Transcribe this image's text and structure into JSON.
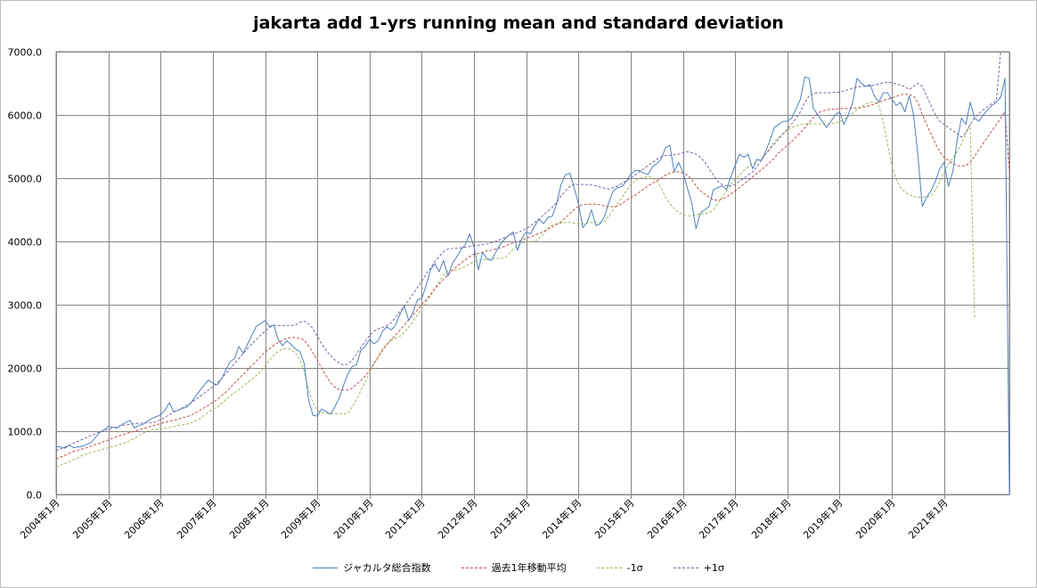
{
  "chart_data": {
    "type": "line",
    "title": "jakarta add 1-yrs running mean and standard deviation",
    "xlabel": "",
    "ylabel": "",
    "ylim": [
      0,
      7000
    ],
    "yticks": [
      "7000.0",
      "6000.0",
      "5000.0",
      "4000.0",
      "3000.0",
      "2000.0",
      "1000.0",
      "0.0"
    ],
    "xticks": [
      "2004年1月",
      "2005年1月",
      "2006年1月",
      "2007年1月",
      "2008年1月",
      "2009年1月",
      "2010年1月",
      "2011年1月",
      "2012年1月",
      "2013年1月",
      "2014年1月",
      "2015年1月",
      "2016年1月",
      "2017年1月",
      "2018年1月",
      "2019年1月",
      "2020年1月",
      "2021年1月"
    ],
    "x_start": "2004-01",
    "grid": true,
    "legend_position": "bottom",
    "series": [
      {
        "name": "ジャカルタ総合指数",
        "color": "#4f81bd",
        "dash": "solid",
        "values": [
          760,
          750,
          730,
          780,
          740,
          750,
          760,
          790,
          820,
          900,
          980,
          1020,
          1080,
          1060,
          1050,
          1100,
          1140,
          1170,
          1050,
          1090,
          1110,
          1160,
          1200,
          1230,
          1260,
          1330,
          1450,
          1310,
          1330,
          1360,
          1380,
          1450,
          1550,
          1640,
          1730,
          1810,
          1760,
          1730,
          1830,
          1970,
          2100,
          2150,
          2340,
          2230,
          2380,
          2520,
          2660,
          2700,
          2750,
          2650,
          2680,
          2450,
          2350,
          2430,
          2370,
          2300,
          2260,
          2070,
          1500,
          1250,
          1240,
          1350,
          1310,
          1270,
          1380,
          1520,
          1720,
          1900,
          2020,
          2050,
          2280,
          2340,
          2450,
          2380,
          2430,
          2580,
          2650,
          2600,
          2680,
          2850,
          2980,
          2750,
          2880,
          3080,
          3100,
          3300,
          3550,
          3650,
          3520,
          3700,
          3450,
          3650,
          3750,
          3870,
          3950,
          4120,
          3920,
          3550,
          3830,
          3720,
          3700,
          3830,
          3950,
          4030,
          4100,
          4150,
          3860,
          4050,
          4150,
          4120,
          4250,
          4350,
          4280,
          4380,
          4400,
          4600,
          4900,
          5050,
          5080,
          4850,
          4600,
          4220,
          4300,
          4500,
          4250,
          4280,
          4400,
          4620,
          4800,
          4850,
          4870,
          4950,
          5060,
          5120,
          5120,
          5080,
          5060,
          5180,
          5230,
          5300,
          5480,
          5520,
          5100,
          5250,
          5100,
          4850,
          4620,
          4200,
          4450,
          4500,
          4550,
          4820,
          4850,
          4880,
          4820,
          5020,
          5200,
          5380,
          5330,
          5380,
          5150,
          5300,
          5280,
          5420,
          5600,
          5800,
          5850,
          5900,
          5900,
          5950,
          6100,
          6250,
          6600,
          6580,
          6100,
          6000,
          5900,
          5800,
          5900,
          6000,
          6050,
          5850,
          6000,
          6200,
          6580,
          6500,
          6450,
          6480,
          6300,
          6200,
          6350,
          6350,
          6250,
          6150,
          6200,
          6050,
          6300,
          6000,
          5350,
          4550,
          4700,
          4800,
          4950,
          5150,
          5250,
          4870,
          5100,
          5600,
          5950,
          5850,
          6200,
          5950,
          5900,
          6000,
          6080,
          6150,
          6200,
          6280,
          6580,
          0
        ]
      },
      {
        "name": "過去1年移動平均",
        "color": "#c0504d",
        "dash": "dashed",
        "values": [
          560,
          590,
          620,
          650,
          680,
          700,
          720,
          740,
          760,
          790,
          810,
          840,
          860,
          890,
          910,
          940,
          960,
          980,
          1000,
          1020,
          1040,
          1060,
          1080,
          1100,
          1120,
          1140,
          1160,
          1170,
          1190,
          1210,
          1230,
          1250,
          1290,
          1330,
          1370,
          1410,
          1460,
          1500,
          1560,
          1620,
          1690,
          1760,
          1830,
          1900,
          1970,
          2040,
          2110,
          2180,
          2250,
          2300,
          2360,
          2400,
          2440,
          2470,
          2480,
          2480,
          2470,
          2440,
          2350,
          2240,
          2120,
          2000,
          1880,
          1770,
          1700,
          1660,
          1650,
          1650,
          1680,
          1740,
          1800,
          1870,
          1960,
          2070,
          2170,
          2280,
          2370,
          2450,
          2520,
          2600,
          2680,
          2760,
          2840,
          2920,
          3000,
          3080,
          3160,
          3250,
          3330,
          3400,
          3470,
          3540,
          3600,
          3660,
          3710,
          3760,
          3800,
          3810,
          3830,
          3850,
          3860,
          3880,
          3900,
          3920,
          3950,
          3980,
          4000,
          4020,
          4050,
          4070,
          4100,
          4130,
          4160,
          4190,
          4230,
          4270,
          4310,
          4370,
          4440,
          4500,
          4560,
          4580,
          4590,
          4590,
          4590,
          4580,
          4560,
          4550,
          4550,
          4560,
          4600,
          4650,
          4690,
          4730,
          4780,
          4830,
          4880,
          4920,
          4960,
          5000,
          5050,
          5080,
          5100,
          5100,
          5080,
          5050,
          4980,
          4880,
          4800,
          4750,
          4700,
          4660,
          4650,
          4670,
          4700,
          4750,
          4800,
          4850,
          4910,
          4960,
          5020,
          5080,
          5130,
          5190,
          5250,
          5320,
          5400,
          5460,
          5520,
          5580,
          5650,
          5720,
          5800,
          5880,
          5960,
          6030,
          6060,
          6080,
          6090,
          6090,
          6100,
          6100,
          6100,
          6110,
          6110,
          6120,
          6130,
          6150,
          6170,
          6200,
          6230,
          6250,
          6270,
          6290,
          6320,
          6330,
          6320,
          6300,
          6200,
          6000,
          5850,
          5700,
          5550,
          5420,
          5330,
          5280,
          5230,
          5200,
          5190,
          5200,
          5250,
          5350,
          5450,
          5550,
          5650,
          5750,
          5850,
          5950,
          6050,
          5100
        ]
      },
      {
        "name": "-1σ",
        "color": "#9bbb59",
        "dash": "dashed",
        "values": [
          430,
          460,
          490,
          520,
          550,
          580,
          620,
          640,
          660,
          680,
          700,
          720,
          740,
          760,
          780,
          800,
          820,
          850,
          890,
          930,
          970,
          1000,
          1020,
          1030,
          1040,
          1050,
          1060,
          1070,
          1090,
          1100,
          1110,
          1130,
          1160,
          1200,
          1250,
          1300,
          1350,
          1380,
          1440,
          1500,
          1560,
          1610,
          1660,
          1710,
          1770,
          1820,
          1880,
          1950,
          2030,
          2120,
          2200,
          2260,
          2300,
          2310,
          2290,
          2230,
          2130,
          1950,
          1650,
          1450,
          1330,
          1290,
          1280,
          1280,
          1270,
          1280,
          1270,
          1280,
          1380,
          1500,
          1640,
          1780,
          1920,
          2060,
          2180,
          2300,
          2380,
          2440,
          2470,
          2500,
          2560,
          2640,
          2740,
          2840,
          2940,
          3040,
          3140,
          3260,
          3370,
          3470,
          3530,
          3550,
          3550,
          3570,
          3600,
          3650,
          3680,
          3700,
          3710,
          3720,
          3720,
          3730,
          3730,
          3740,
          3800,
          3880,
          3930,
          3970,
          4000,
          4000,
          4000,
          4050,
          4120,
          4220,
          4260,
          4280,
          4290,
          4300,
          4300,
          4290,
          4280,
          4280,
          4290,
          4300,
          4300,
          4300,
          4320,
          4400,
          4500,
          4600,
          4700,
          4800,
          4900,
          4960,
          5000,
          5020,
          5030,
          5010,
          4950,
          4850,
          4700,
          4600,
          4520,
          4460,
          4420,
          4400,
          4410,
          4420,
          4430,
          4440,
          4450,
          4500,
          4600,
          4700,
          4800,
          4900,
          4980,
          5050,
          5120,
          5180,
          5230,
          5260,
          5300,
          5380,
          5480,
          5580,
          5650,
          5700,
          5760,
          5800,
          5830,
          5850,
          5860,
          5860,
          5860,
          5860,
          5860,
          5860,
          5860,
          5870,
          5890,
          5930,
          5980,
          6030,
          6080,
          6130,
          6170,
          6200,
          6200,
          6150,
          5900,
          5550,
          5200,
          4980,
          4850,
          4780,
          4740,
          4710,
          4700,
          4700,
          4700,
          4720,
          4800,
          4950,
          5100,
          5220,
          5320,
          5420,
          5550,
          5700,
          5850,
          2800
        ]
      },
      {
        "name": "+1σ",
        "color": "#8064a2",
        "dash": "dashed",
        "values": [
          690,
          720,
          750,
          780,
          810,
          840,
          870,
          900,
          930,
          960,
          990,
          1010,
          1030,
          1050,
          1070,
          1090,
          1100,
          1110,
          1120,
          1125,
          1130,
          1130,
          1135,
          1150,
          1180,
          1220,
          1260,
          1300,
          1330,
          1370,
          1410,
          1450,
          1500,
          1550,
          1600,
          1650,
          1700,
          1760,
          1830,
          1910,
          1990,
          2070,
          2150,
          2230,
          2310,
          2380,
          2450,
          2520,
          2580,
          2640,
          2670,
          2670,
          2670,
          2670,
          2670,
          2680,
          2720,
          2740,
          2700,
          2620,
          2500,
          2380,
          2280,
          2200,
          2130,
          2080,
          2050,
          2060,
          2120,
          2220,
          2320,
          2420,
          2510,
          2580,
          2620,
          2640,
          2670,
          2720,
          2800,
          2890,
          2980,
          3070,
          3170,
          3270,
          3370,
          3480,
          3580,
          3680,
          3760,
          3840,
          3880,
          3890,
          3890,
          3900,
          3910,
          3920,
          3930,
          3940,
          3950,
          3960,
          3980,
          4000,
          4030,
          4060,
          4090,
          4120,
          4140,
          4170,
          4200,
          4250,
          4300,
          4360,
          4420,
          4480,
          4540,
          4620,
          4720,
          4800,
          4870,
          4900,
          4900,
          4900,
          4900,
          4890,
          4880,
          4860,
          4840,
          4830,
          4850,
          4880,
          4920,
          4960,
          5000,
          5050,
          5100,
          5150,
          5200,
          5250,
          5300,
          5340,
          5360,
          5360,
          5370,
          5380,
          5400,
          5420,
          5400,
          5380,
          5330,
          5260,
          5150,
          5050,
          4950,
          4900,
          4880,
          4880,
          4900,
          4950,
          5000,
          5050,
          5100,
          5180,
          5280,
          5380,
          5460,
          5540,
          5620,
          5700,
          5780,
          5860,
          5940,
          6050,
          6200,
          6300,
          6340,
          6350,
          6350,
          6350,
          6350,
          6360,
          6360,
          6380,
          6400,
          6420,
          6440,
          6450,
          6450,
          6460,
          6470,
          6490,
          6510,
          6520,
          6510,
          6490,
          6470,
          6450,
          6400,
          6450,
          6500,
          6450,
          6300,
          6150,
          6000,
          5900,
          5850,
          5800,
          5750,
          5700,
          5650,
          5720,
          5850,
          5950,
          6020,
          6080,
          6130,
          6180,
          6230,
          7000
        ]
      }
    ]
  }
}
